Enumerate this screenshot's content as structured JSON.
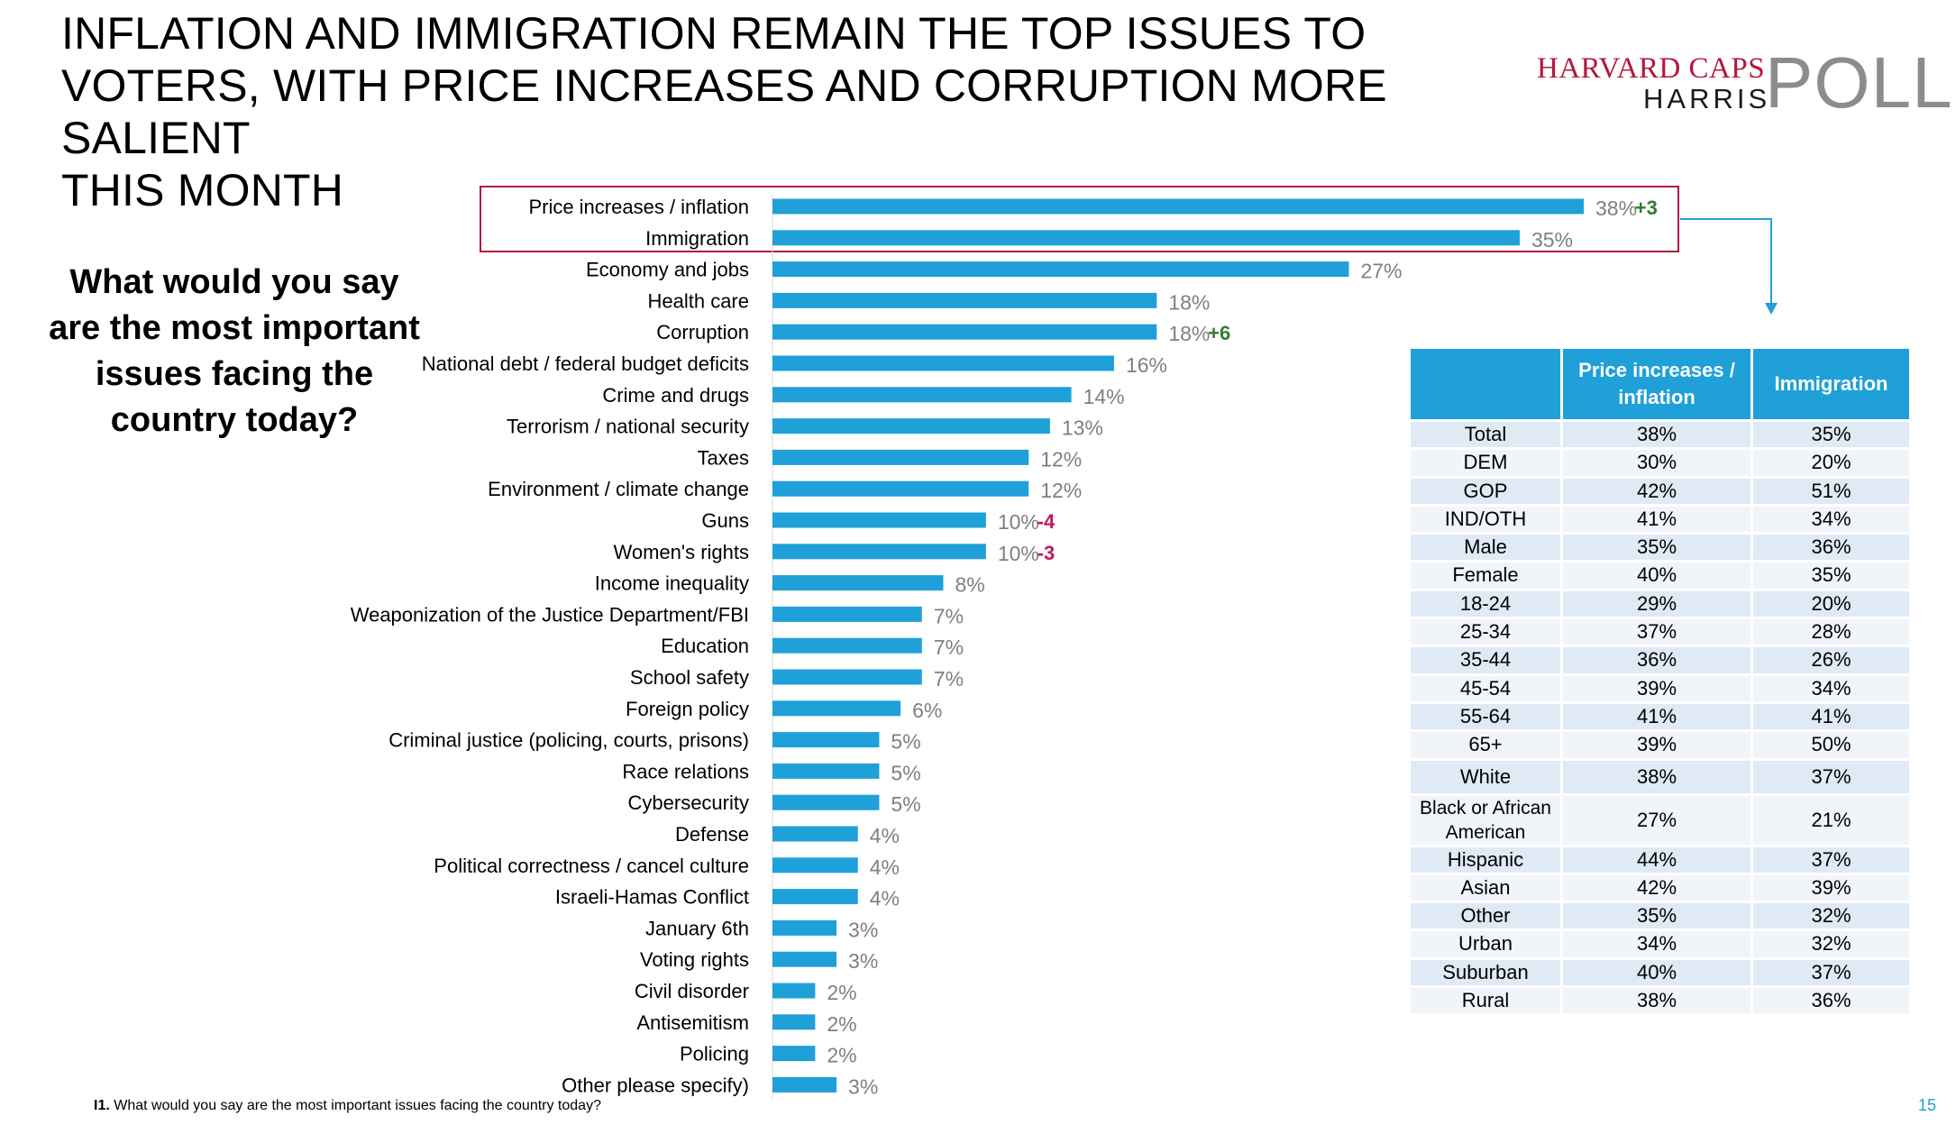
{
  "title_lines": [
    "INFLATION AND IMMIGRATION REMAIN THE TOP ISSUES TO",
    "VOTERS, WITH PRICE INCREASES AND CORRUPTION MORE SALIENT",
    "THIS MONTH"
  ],
  "logo": {
    "line1": "HARVARD CAPS",
    "line2": "HARRIS",
    "line3": "POLL"
  },
  "question_lines": [
    "What would you say",
    "are the most important",
    "issues facing the",
    "country today?"
  ],
  "colors": {
    "bar": "#1fa0d8",
    "positive_change": "#2e7d32",
    "negative_change": "#c2185b",
    "highlight_box": "#b5163c",
    "value_label": "#7f7f7f"
  },
  "chart_data": {
    "type": "bar",
    "orientation": "horizontal",
    "title": "What would you say are the most important issues facing the country today?",
    "unit": "%",
    "categories": [
      "Price increases / inflation",
      "Immigration",
      "Economy and jobs",
      "Health care",
      "Corruption",
      "National debt / federal budget deficits",
      "Crime and drugs",
      "Terrorism / national security",
      "Taxes",
      "Environment / climate change",
      "Guns",
      "Women's rights",
      "Income inequality",
      "Weaponization of the Justice Department/FBI",
      "Education",
      "School safety",
      "Foreign policy",
      "Criminal justice (policing, courts, prisons)",
      "Race relations",
      "Cybersecurity",
      "Defense",
      "Political correctness / cancel culture",
      "Israeli-Hamas Conflict",
      "January 6th",
      "Voting rights",
      "Civil disorder",
      "Antisemitism",
      "Policing",
      "Other please specify)"
    ],
    "values": [
      38,
      35,
      27,
      18,
      18,
      16,
      14,
      13,
      12,
      12,
      10,
      10,
      8,
      7,
      7,
      7,
      6,
      5,
      5,
      5,
      4,
      4,
      4,
      3,
      3,
      2,
      2,
      2,
      3
    ],
    "value_labels": [
      "38%",
      "35%",
      "27%",
      "18%",
      "18%",
      "16%",
      "14%",
      "13%",
      "12%",
      "12%",
      "10%",
      "10%",
      "8%",
      "7%",
      "7%",
      "7%",
      "6%",
      "5%",
      "5%",
      "5%",
      "4%",
      "4%",
      "4%",
      "3%",
      "3%",
      "2%",
      "2%",
      "2%",
      "3%"
    ],
    "changes": [
      "+3",
      "",
      "",
      "",
      "+6",
      "",
      "",
      "",
      "",
      "",
      "-4",
      "-3",
      "",
      "",
      "",
      "",
      "",
      "",
      "",
      "",
      "",
      "",
      "",
      "",
      "",
      "",
      "",
      "",
      ""
    ],
    "xlim": [
      0,
      38
    ],
    "highlighted_categories": [
      "Price increases / inflation",
      "Immigration"
    ]
  },
  "table": {
    "headers": [
      "",
      "Price increases / inflation",
      "Immigration"
    ],
    "rows": [
      [
        "Total",
        "38%",
        "35%"
      ],
      [
        "DEM",
        "30%",
        "20%"
      ],
      [
        "GOP",
        "42%",
        "51%"
      ],
      [
        "IND/OTH",
        "41%",
        "34%"
      ],
      [
        "Male",
        "35%",
        "36%"
      ],
      [
        "Female",
        "40%",
        "35%"
      ],
      [
        "18-24",
        "29%",
        "20%"
      ],
      [
        "25-34",
        "37%",
        "28%"
      ],
      [
        "35-44",
        "36%",
        "26%"
      ],
      [
        "45-54",
        "39%",
        "34%"
      ],
      [
        "55-64",
        "41%",
        "41%"
      ],
      [
        "65+",
        "39%",
        "50%"
      ],
      [
        "White",
        "38%",
        "37%"
      ],
      [
        "Black or African American",
        "27%",
        "21%"
      ],
      [
        "Hispanic",
        "44%",
        "37%"
      ],
      [
        "Asian",
        "42%",
        "39%"
      ],
      [
        "Other",
        "35%",
        "32%"
      ],
      [
        "Urban",
        "34%",
        "32%"
      ],
      [
        "Suburban",
        "40%",
        "37%"
      ],
      [
        "Rural",
        "38%",
        "36%"
      ]
    ]
  },
  "footnote": {
    "code": "I1.",
    "text": "What would you say are the most important issues facing the country today?"
  },
  "page_number": "15"
}
